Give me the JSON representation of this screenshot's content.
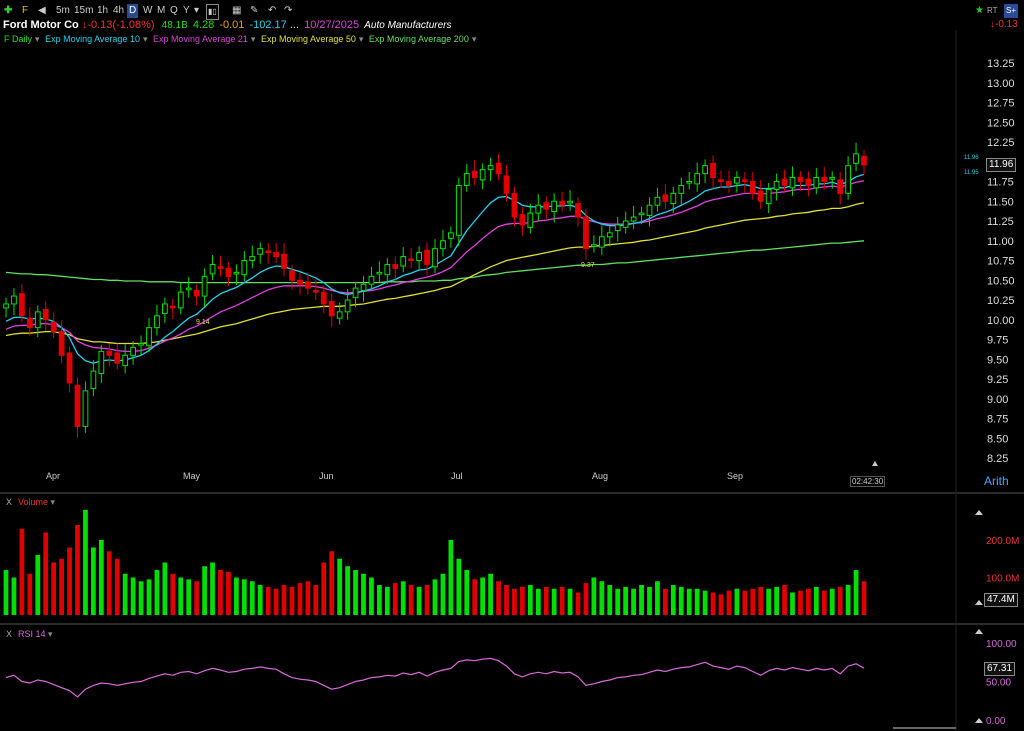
{
  "header": {
    "company": "Ford Motor Co",
    "change": "-0.13(-1.08%)",
    "float": "48.1B",
    "pe": "4.28",
    "eps_change": "-0.01",
    "v1": "-102.17",
    "date": "10/27/2025",
    "industry": "Auto Manufacturers",
    "right_change": "-0.13",
    "timeframes": [
      "5m",
      "15m",
      "1h",
      "4h",
      "D",
      "W",
      "M",
      "Q",
      "Y"
    ],
    "selected_timeframe": "D",
    "rt_badge": "RT",
    "s_badge": "S+"
  },
  "legend": {
    "symbol": "F Daily",
    "ema10": "Exp Moving Average 10",
    "ema21": "Exp Moving Average 21",
    "ema50": "Exp Moving Average 50",
    "ema200": "Exp Moving Average 200"
  },
  "colors": {
    "up": "#00e000",
    "down": "#e00000",
    "ema10": "#22d3ee",
    "ema21": "#e040e0",
    "ema50": "#e0e030",
    "ema200": "#60e060",
    "rsi": "#d86ad8",
    "axis_link": "#4aa3ff"
  },
  "price_axis": {
    "ticks": [
      "13.25",
      "13.00",
      "12.75",
      "12.50",
      "12.25",
      "12.00",
      "11.75",
      "11.50",
      "11.25",
      "11.00",
      "10.75",
      "10.50",
      "10.25",
      "10.00",
      "9.75",
      "9.50",
      "9.25",
      "9.00",
      "8.75",
      "8.50",
      "8.25"
    ],
    "last": "11.96",
    "small_hi": "11.96",
    "small_lo": "11.95",
    "scale": "Arith",
    "countdown": "02:42:30"
  },
  "months": [
    "Apr",
    "May",
    "Jun",
    "Jul",
    "Aug",
    "Sep"
  ],
  "annotations": [
    "9.14",
    "9.37"
  ],
  "volume": {
    "title": "Volume",
    "ticks": [
      "200.0M",
      "100.0M"
    ],
    "last": "47.4M"
  },
  "rsi": {
    "title": "RSI 14",
    "ticks": [
      "100.00",
      "50.00",
      "0.00"
    ],
    "last": "67.31"
  },
  "closes": [
    10.2,
    10.3,
    10.05,
    9.9,
    10.1,
    10.0,
    9.85,
    9.55,
    9.2,
    8.65,
    9.1,
    9.35,
    9.6,
    9.55,
    9.45,
    9.55,
    9.65,
    9.7,
    9.9,
    10.05,
    10.2,
    10.15,
    10.35,
    10.4,
    10.3,
    10.55,
    10.7,
    10.65,
    10.55,
    10.6,
    10.75,
    10.8,
    10.9,
    10.85,
    10.8,
    10.65,
    10.5,
    10.45,
    10.4,
    10.35,
    10.2,
    10.05,
    10.1,
    10.25,
    10.4,
    10.45,
    10.55,
    10.6,
    10.7,
    10.65,
    10.8,
    10.75,
    10.85,
    10.7,
    10.9,
    11.0,
    11.1,
    11.7,
    11.85,
    11.8,
    11.9,
    11.95,
    11.85,
    11.6,
    11.3,
    11.2,
    11.35,
    11.45,
    11.4,
    11.5,
    11.45,
    11.5,
    11.3,
    10.9,
    10.95,
    11.05,
    11.1,
    11.2,
    11.25,
    11.3,
    11.35,
    11.45,
    11.55,
    11.5,
    11.6,
    11.7,
    11.75,
    11.85,
    11.95,
    11.8,
    11.75,
    11.7,
    11.8,
    11.75,
    11.6,
    11.5,
    11.65,
    11.75,
    11.7,
    11.8,
    11.75,
    11.7,
    11.8,
    11.75,
    11.8,
    11.6,
    11.95,
    12.1,
    11.96
  ],
  "ema10": [
    9.98,
    10.03,
    10.03,
    10.01,
    10.02,
    10.01,
    9.98,
    9.9,
    9.77,
    9.57,
    9.48,
    9.45,
    9.48,
    9.49,
    9.48,
    9.49,
    9.52,
    9.55,
    9.61,
    9.69,
    9.78,
    9.85,
    9.94,
    10.02,
    10.07,
    10.16,
    10.26,
    10.33,
    10.37,
    10.41,
    10.47,
    10.53,
    10.6,
    10.65,
    10.68,
    10.67,
    10.64,
    10.61,
    10.57,
    10.53,
    10.47,
    10.39,
    10.34,
    10.32,
    10.34,
    10.36,
    10.39,
    10.43,
    10.48,
    10.51,
    10.56,
    10.59,
    10.63,
    10.64,
    10.69,
    10.75,
    10.81,
    10.97,
    11.13,
    11.25,
    11.37,
    11.48,
    11.55,
    11.56,
    11.51,
    11.45,
    11.43,
    11.43,
    11.43,
    11.44,
    11.44,
    11.45,
    11.42,
    11.32,
    11.25,
    11.21,
    11.19,
    11.19,
    11.2,
    11.22,
    11.24,
    11.28,
    11.33,
    11.36,
    11.4,
    11.45,
    11.5,
    11.56,
    11.63,
    11.66,
    11.68,
    11.68,
    11.7,
    11.71,
    11.69,
    11.66,
    11.66,
    11.67,
    11.67,
    11.7,
    11.7,
    11.7,
    11.72,
    11.72,
    11.74,
    11.71,
    11.75,
    11.81,
    11.84
  ],
  "ema21": [
    9.88,
    9.92,
    9.93,
    9.93,
    9.95,
    9.95,
    9.94,
    9.9,
    9.84,
    9.73,
    9.68,
    9.65,
    9.64,
    9.63,
    9.61,
    9.6,
    9.6,
    9.61,
    9.64,
    9.68,
    9.73,
    9.77,
    9.82,
    9.88,
    9.92,
    9.98,
    10.04,
    10.1,
    10.14,
    10.18,
    10.23,
    10.28,
    10.33,
    10.38,
    10.41,
    10.43,
    10.43,
    10.43,
    10.43,
    10.42,
    10.4,
    10.37,
    10.35,
    10.34,
    10.35,
    10.36,
    10.37,
    10.39,
    10.42,
    10.44,
    10.47,
    10.49,
    10.52,
    10.54,
    10.57,
    10.61,
    10.66,
    10.76,
    10.86,
    10.94,
    11.03,
    11.11,
    11.18,
    11.21,
    11.22,
    11.22,
    11.23,
    11.25,
    11.26,
    11.28,
    11.29,
    11.31,
    11.31,
    11.27,
    11.24,
    11.22,
    11.21,
    11.21,
    11.21,
    11.22,
    11.23,
    11.25,
    11.28,
    11.3,
    11.33,
    11.36,
    11.4,
    11.44,
    11.49,
    11.52,
    11.54,
    11.56,
    11.58,
    11.6,
    11.6,
    11.59,
    11.6,
    11.61,
    11.62,
    11.64,
    11.65,
    11.65,
    11.67,
    11.68,
    11.69,
    11.68,
    11.71,
    11.74,
    11.76
  ],
  "ema50": [
    9.8,
    9.82,
    9.83,
    9.83,
    9.84,
    9.85,
    9.85,
    9.83,
    9.81,
    9.76,
    9.74,
    9.72,
    9.72,
    9.71,
    9.7,
    9.7,
    9.7,
    9.7,
    9.71,
    9.72,
    9.74,
    9.76,
    9.78,
    9.8,
    9.82,
    9.85,
    9.88,
    9.91,
    9.93,
    9.95,
    9.98,
    10.01,
    10.04,
    10.07,
    10.09,
    10.11,
    10.13,
    10.14,
    10.15,
    10.16,
    10.17,
    10.17,
    10.17,
    10.18,
    10.19,
    10.2,
    10.22,
    10.24,
    10.26,
    10.27,
    10.29,
    10.31,
    10.33,
    10.35,
    10.37,
    10.4,
    10.42,
    10.47,
    10.52,
    10.57,
    10.62,
    10.67,
    10.71,
    10.75,
    10.77,
    10.79,
    10.81,
    10.83,
    10.85,
    10.87,
    10.89,
    10.91,
    10.92,
    10.92,
    10.93,
    10.94,
    10.95,
    10.96,
    10.97,
    10.98,
    11.0,
    11.01,
    11.03,
    11.05,
    11.07,
    11.09,
    11.11,
    11.13,
    11.16,
    11.18,
    11.2,
    11.22,
    11.24,
    11.26,
    11.27,
    11.28,
    11.29,
    11.31,
    11.32,
    11.34,
    11.35,
    11.36,
    11.38,
    11.39,
    11.41,
    11.41,
    11.43,
    11.46,
    11.48
  ],
  "ema200": [
    10.6,
    10.59,
    10.58,
    10.58,
    10.57,
    10.57,
    10.56,
    10.55,
    10.54,
    10.53,
    10.52,
    10.51,
    10.51,
    10.5,
    10.5,
    10.49,
    10.49,
    10.49,
    10.48,
    10.48,
    10.48,
    10.48,
    10.47,
    10.47,
    10.47,
    10.47,
    10.47,
    10.47,
    10.47,
    10.47,
    10.47,
    10.47,
    10.47,
    10.47,
    10.47,
    10.47,
    10.47,
    10.47,
    10.47,
    10.47,
    10.47,
    10.47,
    10.47,
    10.47,
    10.47,
    10.47,
    10.47,
    10.47,
    10.48,
    10.48,
    10.48,
    10.48,
    10.49,
    10.49,
    10.49,
    10.5,
    10.5,
    10.52,
    10.53,
    10.54,
    10.56,
    10.57,
    10.58,
    10.6,
    10.61,
    10.62,
    10.63,
    10.64,
    10.65,
    10.66,
    10.67,
    10.68,
    10.69,
    10.69,
    10.7,
    10.7,
    10.71,
    10.72,
    10.72,
    10.73,
    10.74,
    10.75,
    10.76,
    10.77,
    10.78,
    10.79,
    10.8,
    10.81,
    10.82,
    10.83,
    10.84,
    10.85,
    10.86,
    10.87,
    10.88,
    10.88,
    10.89,
    10.9,
    10.91,
    10.92,
    10.93,
    10.94,
    10.95,
    10.96,
    10.97,
    10.97,
    10.98,
    10.99,
    11.0
  ],
  "volumes": [
    120,
    100,
    230,
    110,
    160,
    220,
    140,
    150,
    180,
    240,
    280,
    180,
    200,
    170,
    150,
    110,
    100,
    90,
    95,
    120,
    140,
    110,
    100,
    95,
    90,
    130,
    140,
    120,
    115,
    100,
    95,
    90,
    80,
    75,
    70,
    80,
    75,
    85,
    90,
    80,
    140,
    170,
    150,
    130,
    120,
    110,
    100,
    80,
    75,
    85,
    90,
    80,
    75,
    80,
    95,
    110,
    200,
    150,
    120,
    95,
    100,
    110,
    90,
    80,
    70,
    75,
    80,
    70,
    75,
    70,
    75,
    70,
    60,
    85,
    100,
    90,
    80,
    70,
    75,
    70,
    80,
    75,
    90,
    70,
    80,
    75,
    70,
    70,
    65,
    60,
    55,
    65,
    70,
    65,
    70,
    75,
    70,
    75,
    80,
    60,
    65,
    70,
    75,
    65,
    70,
    75,
    80,
    120,
    90
  ],
  "rsi_values": [
    55,
    58,
    50,
    48,
    52,
    50,
    46,
    42,
    38,
    30,
    40,
    45,
    48,
    47,
    45,
    47,
    49,
    50,
    54,
    57,
    60,
    58,
    62,
    63,
    60,
    64,
    67,
    65,
    62,
    63,
    66,
    67,
    69,
    67,
    66,
    60,
    55,
    53,
    52,
    50,
    45,
    40,
    42,
    46,
    50,
    52,
    55,
    56,
    58,
    57,
    61,
    59,
    62,
    57,
    62,
    65,
    67,
    76,
    78,
    77,
    79,
    80,
    77,
    70,
    60,
    56,
    60,
    62,
    60,
    63,
    61,
    62,
    56,
    45,
    47,
    50,
    52,
    55,
    56,
    58,
    59,
    62,
    65,
    63,
    66,
    68,
    69,
    72,
    75,
    70,
    68,
    66,
    70,
    68,
    63,
    58,
    64,
    67,
    65,
    68,
    66,
    64,
    67,
    65,
    67,
    60,
    70,
    73,
    67.31
  ]
}
